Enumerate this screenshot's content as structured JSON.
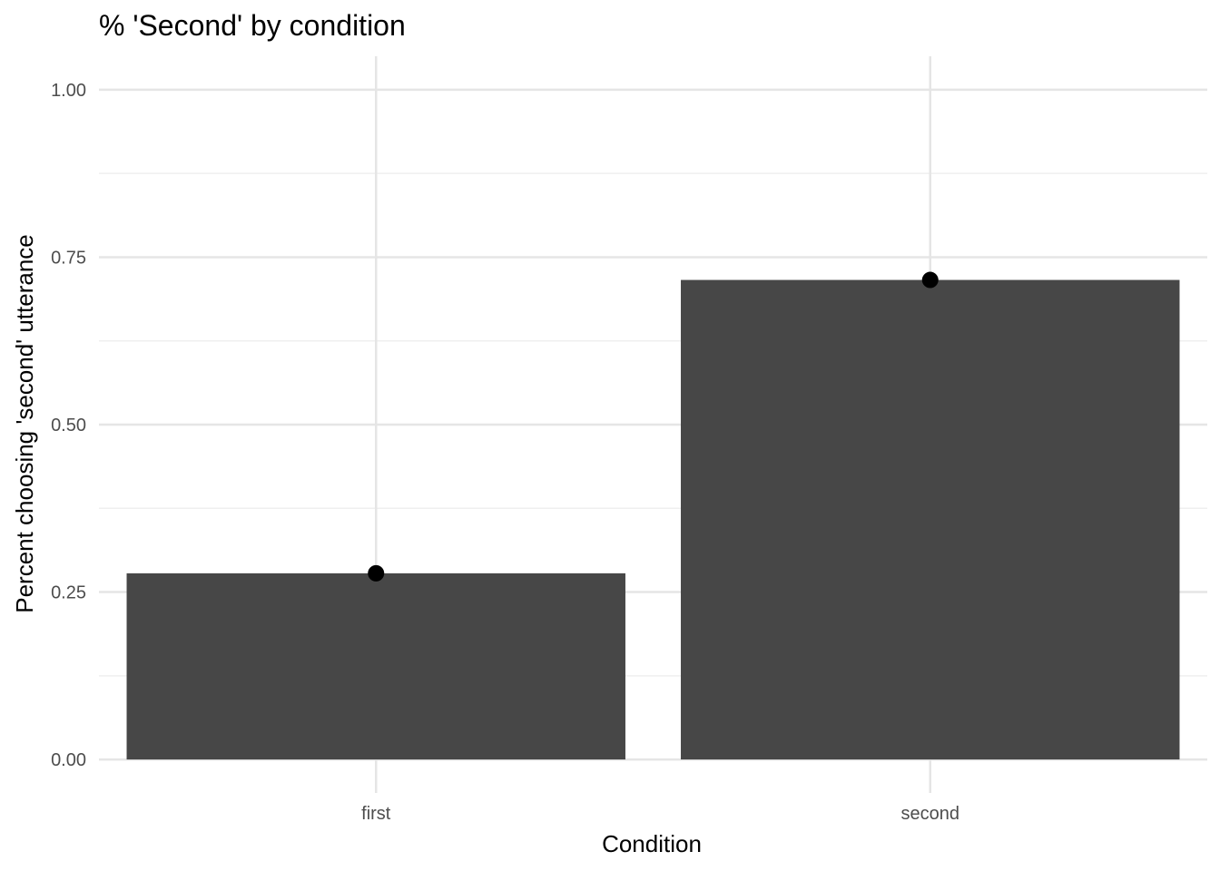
{
  "chart_data": {
    "type": "bar",
    "title": "% 'Second' by condition",
    "xlabel": "Condition",
    "ylabel": "Percent choosing 'second' utterance",
    "categories": [
      "first",
      "second"
    ],
    "values": [
      0.278,
      0.716
    ],
    "points": [
      0.278,
      0.716
    ],
    "ylim": [
      -0.05,
      1.05
    ],
    "yticks": [
      0,
      0.25,
      0.5,
      0.75,
      1.0
    ],
    "ytick_labels": [
      "0.00",
      "0.25",
      "0.50",
      "0.75",
      "1.00"
    ],
    "grid": true,
    "legend": "none",
    "colors": {
      "bar": "#474747",
      "point": "#000000",
      "grid_major": "#e5e5e5",
      "grid_minor": "#efefef",
      "text": "#000000",
      "tick_text": "#4d4d4d"
    }
  }
}
